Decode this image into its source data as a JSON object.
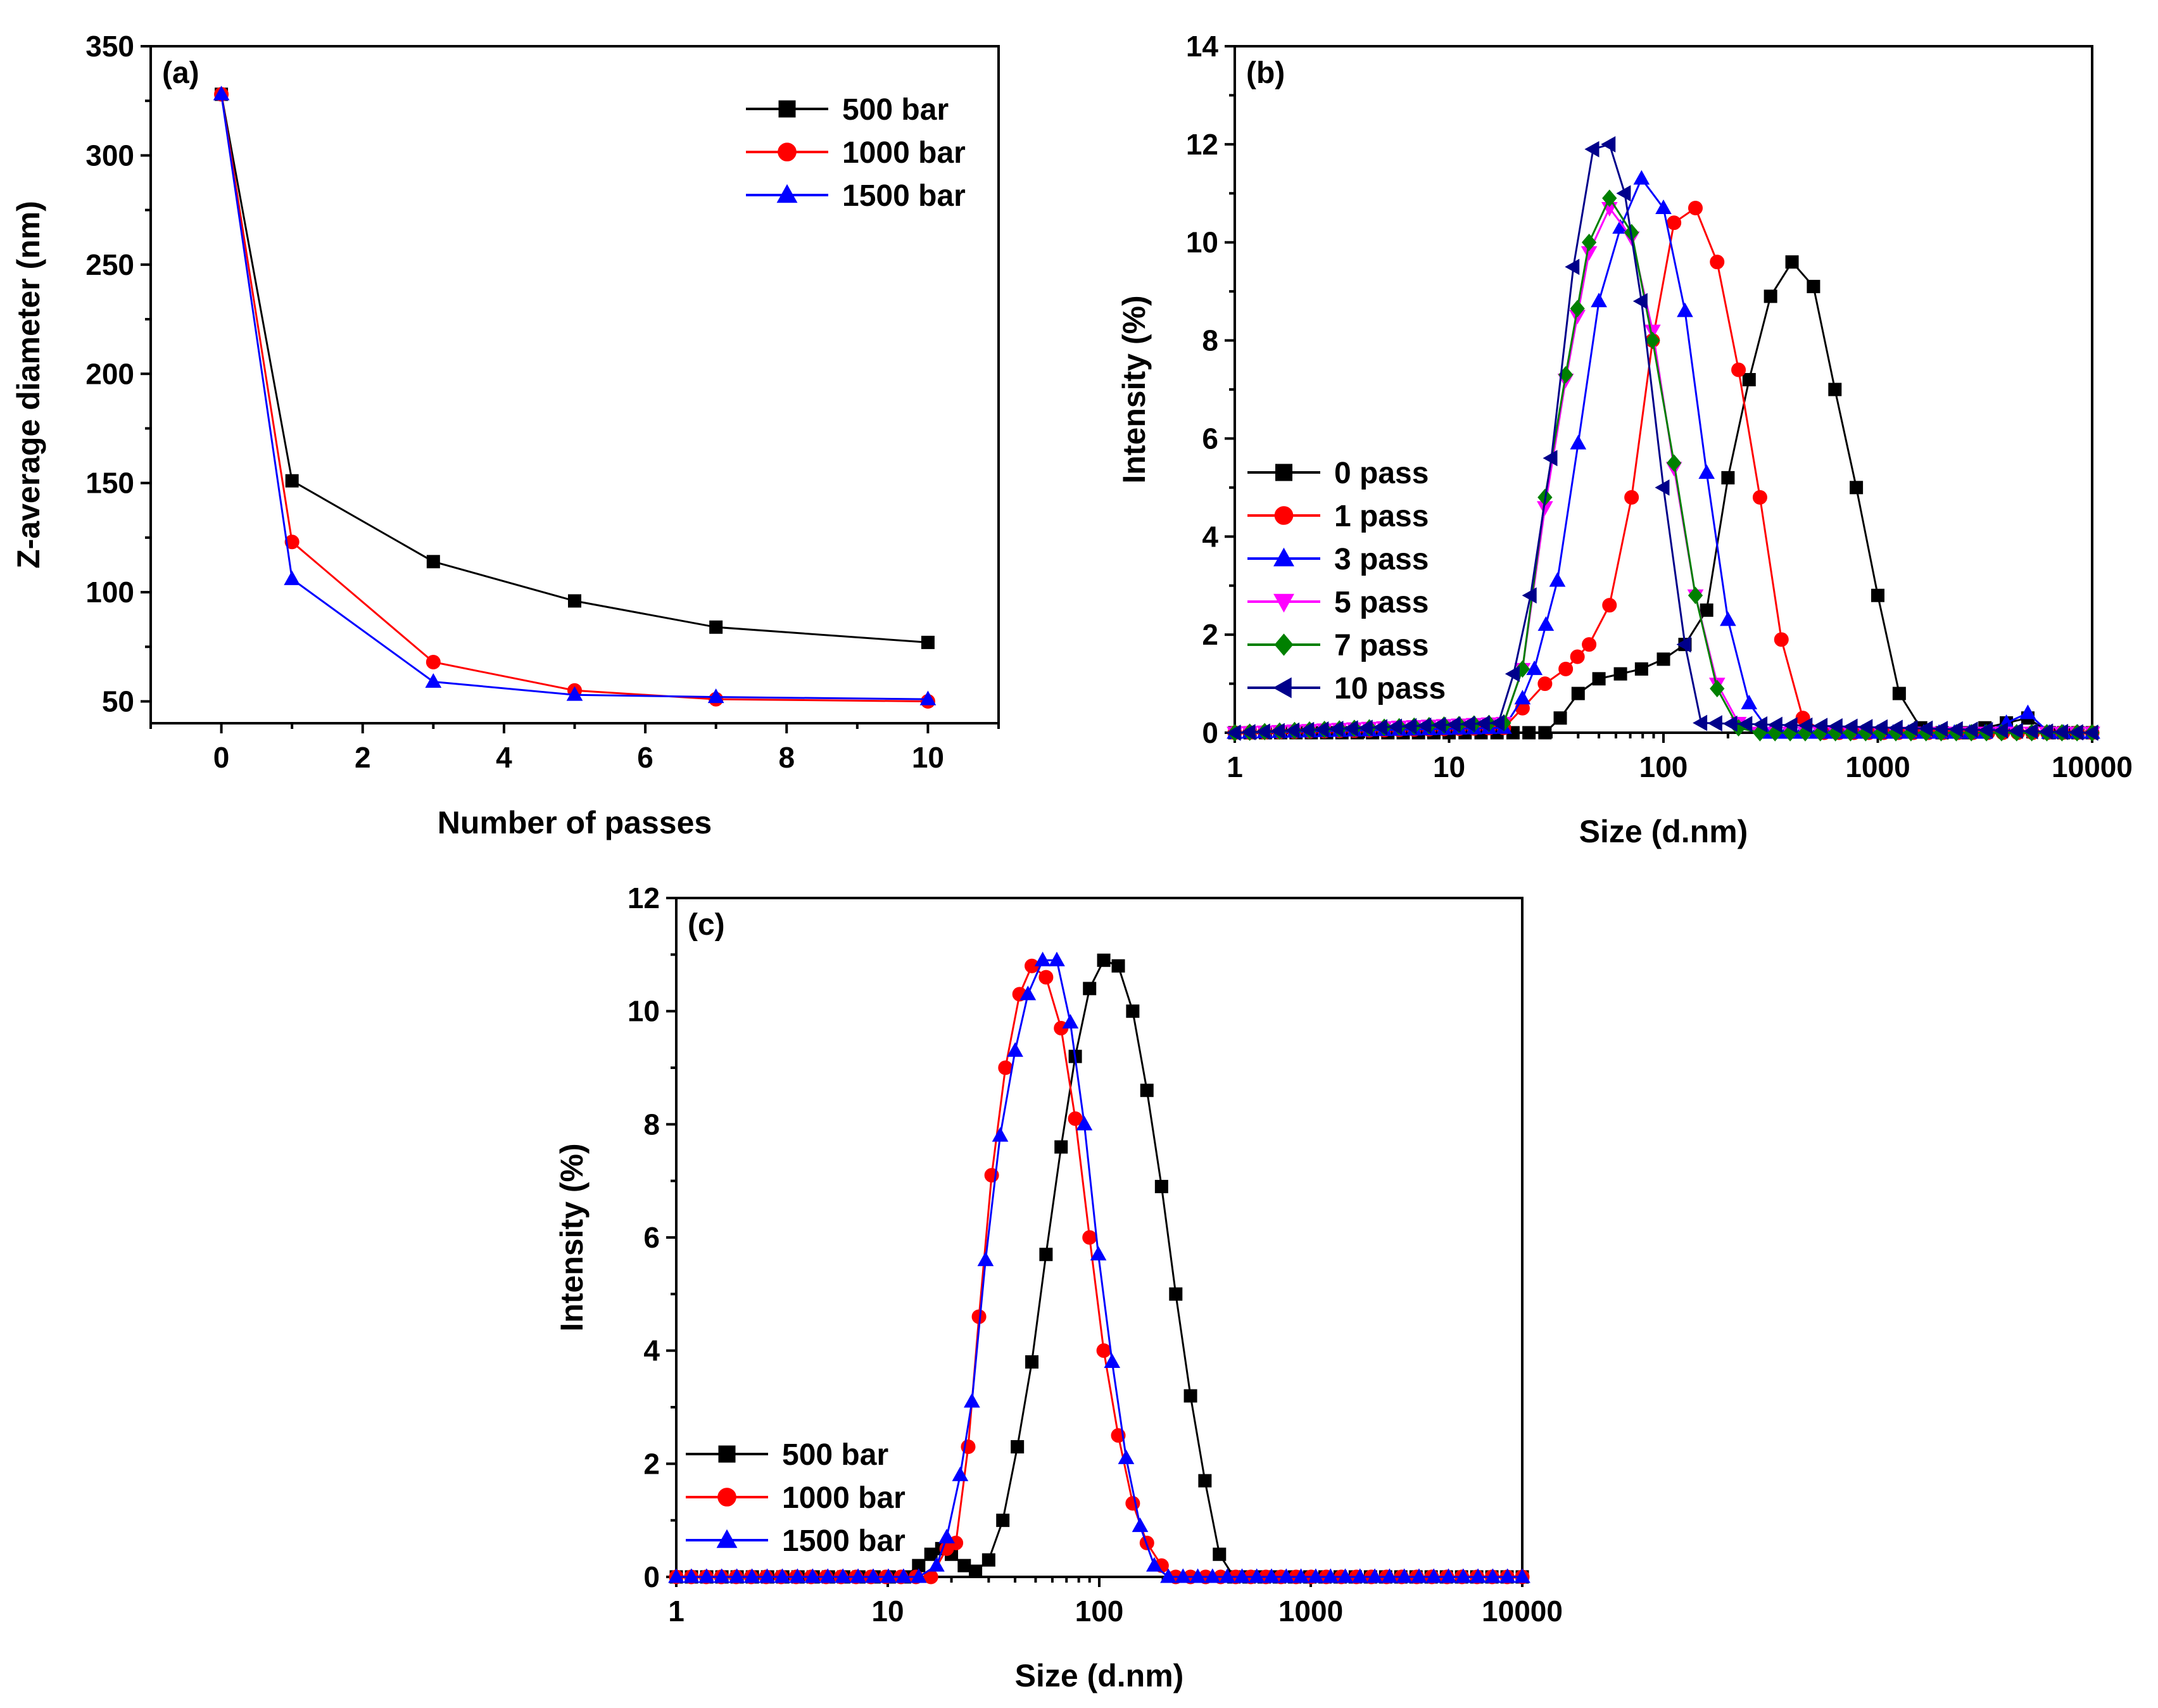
{
  "chart_data": [
    {
      "id": "a",
      "panel_label": "(a)",
      "type": "line",
      "xlabel": "Number of passes",
      "ylabel": "Z-average diameter (nm)",
      "xlim": [
        -1,
        11
      ],
      "ylim": [
        40,
        350
      ],
      "xticks": [
        0,
        2,
        4,
        6,
        8,
        10
      ],
      "yticks": [
        50,
        100,
        150,
        200,
        250,
        300,
        350
      ],
      "legend": "top-right",
      "series": [
        {
          "name": "500 bar",
          "color": "#000000",
          "marker": "square",
          "x": [
            0,
            1,
            3,
            5,
            7,
            10
          ],
          "y": [
            328,
            151,
            114,
            96,
            84,
            77
          ]
        },
        {
          "name": "1000 bar",
          "color": "#ff0000",
          "marker": "circle",
          "x": [
            0,
            1,
            3,
            5,
            7,
            10
          ],
          "y": [
            328,
            123,
            68,
            55,
            51,
            50
          ]
        },
        {
          "name": "1500 bar",
          "color": "#0000ff",
          "marker": "triangle",
          "x": [
            0,
            1,
            3,
            5,
            7,
            10
          ],
          "y": [
            328,
            106,
            59,
            53,
            52,
            51
          ]
        }
      ]
    },
    {
      "id": "b",
      "panel_label": "(b)",
      "type": "line",
      "xscale": "log",
      "xlabel": "Size (d.nm)",
      "ylabel": "Intensity (%)",
      "xlim": [
        1,
        10000
      ],
      "ylim": [
        0,
        14
      ],
      "xticks": [
        1,
        10,
        100,
        1000,
        10000
      ],
      "yticks": [
        0,
        2,
        4,
        6,
        8,
        10,
        12,
        14
      ],
      "legend": "bottom-left",
      "series": [
        {
          "name": "0 pass",
          "color": "#000000",
          "marker": "square",
          "x": [
            1,
            10,
            28,
            33,
            40,
            50,
            63,
            79,
            100,
            126,
            159,
            200,
            251,
            316,
            398,
            501,
            631,
            794,
            1000,
            1259,
            1585,
            1995,
            2512,
            3162,
            3981,
            5012,
            6310,
            10000
          ],
          "y": [
            0,
            0,
            0,
            0.3,
            0.8,
            1.1,
            1.2,
            1.3,
            1.5,
            1.8,
            2.5,
            5.2,
            7.2,
            8.9,
            9.6,
            9.1,
            7.0,
            5.0,
            2.8,
            0.8,
            0.1,
            0,
            0,
            0.1,
            0.2,
            0.3,
            0,
            0
          ]
        },
        {
          "name": "1 pass",
          "color": "#ff0000",
          "marker": "circle",
          "x": [
            1,
            18,
            22,
            28,
            35,
            45,
            56,
            71,
            89,
            112,
            141,
            178,
            224,
            282,
            355,
            447,
            562,
            10000
          ],
          "y": [
            0,
            0.1,
            0.5,
            1.0,
            1.3,
            1.8,
            2.6,
            4.8,
            8.0,
            10.4,
            10.7,
            9.6,
            7.4,
            4.8,
            1.9,
            0.3,
            0,
            0
          ]
        },
        {
          "name": "3 pass",
          "color": "#0000ff",
          "marker": "triangle",
          "x": [
            1,
            18,
            22,
            25,
            32,
            40,
            50,
            63,
            79,
            100,
            126,
            159,
            200,
            251,
            316,
            3162,
            3981,
            5012,
            6310,
            10000
          ],
          "y": [
            0,
            0.1,
            0.7,
            1.3,
            3.1,
            5.9,
            8.8,
            10.3,
            11.3,
            10.7,
            8.6,
            5.3,
            2.3,
            0.6,
            0,
            0,
            0.2,
            0.4,
            0,
            0
          ]
        },
        {
          "name": "5 pass",
          "color": "#ff00ff",
          "marker": "triangle-down",
          "x": [
            1,
            18,
            22,
            28,
            35,
            45,
            56,
            71,
            89,
            112,
            141,
            178,
            224,
            282,
            10000
          ],
          "y": [
            0,
            0.2,
            1.3,
            4.6,
            7.2,
            9.8,
            10.7,
            10.1,
            8.2,
            5.4,
            2.8,
            1.0,
            0.2,
            0,
            0
          ]
        },
        {
          "name": "7 pass",
          "color": "#008000",
          "marker": "diamond",
          "x": [
            1,
            18,
            22,
            28,
            35,
            45,
            56,
            71,
            89,
            112,
            141,
            178,
            224,
            282,
            10000
          ],
          "y": [
            0,
            0.2,
            1.3,
            4.8,
            7.3,
            10.0,
            10.9,
            10.2,
            8.0,
            5.5,
            2.8,
            0.9,
            0.1,
            0,
            0
          ]
        },
        {
          "name": "10 pass",
          "color": "#00008b",
          "marker": "triangle-left",
          "x": [
            1,
            17,
            20,
            24,
            30,
            38,
            47,
            56,
            66,
            79,
            100,
            126,
            150,
            10000
          ],
          "y": [
            0,
            0.2,
            1.2,
            2.8,
            5.6,
            9.5,
            11.9,
            12.0,
            11.0,
            8.8,
            5.0,
            1.8,
            0.2,
            0
          ]
        }
      ]
    },
    {
      "id": "c",
      "panel_label": "(c)",
      "type": "line",
      "xscale": "log",
      "xlabel": "Size (d.nm)",
      "ylabel": "Intensity (%)",
      "xlim": [
        1,
        10000
      ],
      "ylim": [
        0,
        12
      ],
      "xticks": [
        1,
        10,
        100,
        1000,
        10000
      ],
      "yticks": [
        0,
        2,
        4,
        6,
        8,
        10,
        12
      ],
      "legend": "bottom-left",
      "series": [
        {
          "name": "500 bar",
          "color": "#000000",
          "marker": "square",
          "x": [
            1,
            12,
            14,
            16,
            18,
            20,
            23,
            26,
            30,
            35,
            41,
            48,
            56,
            66,
            77,
            90,
            105,
            123,
            144,
            168,
            197,
            230,
            270,
            316,
            370,
            433,
            10000
          ],
          "y": [
            0,
            0,
            0.2,
            0.4,
            0.5,
            0.4,
            0.2,
            0.1,
            0.3,
            1.0,
            2.3,
            3.8,
            5.7,
            7.6,
            9.2,
            10.4,
            10.9,
            10.8,
            10.0,
            8.6,
            6.9,
            5.0,
            3.2,
            1.7,
            0.4,
            0,
            0
          ]
        },
        {
          "name": "1000 bar",
          "color": "#ff0000",
          "marker": "circle",
          "x": [
            1,
            16,
            19,
            21,
            24,
            27,
            31,
            36,
            42,
            48,
            56,
            66,
            77,
            90,
            105,
            123,
            144,
            168,
            197,
            230,
            270,
            10000
          ],
          "y": [
            0,
            0,
            0.5,
            0.6,
            2.3,
            4.6,
            7.1,
            9.0,
            10.3,
            10.8,
            10.6,
            9.7,
            8.1,
            6.0,
            4.0,
            2.5,
            1.3,
            0.6,
            0.2,
            0,
            0,
            0
          ]
        },
        {
          "name": "1500 bar",
          "color": "#0000ff",
          "marker": "triangle",
          "x": [
            1,
            14,
            17,
            19,
            22,
            25,
            29,
            34,
            40,
            46,
            54,
            63,
            73,
            85,
            99,
            115,
            134,
            156,
            182,
            212,
            10000
          ],
          "y": [
            0,
            0,
            0.2,
            0.7,
            1.8,
            3.1,
            5.6,
            7.8,
            9.3,
            10.3,
            10.9,
            10.9,
            9.8,
            8.0,
            5.7,
            3.8,
            2.1,
            0.9,
            0.2,
            0,
            0
          ]
        }
      ]
    }
  ]
}
